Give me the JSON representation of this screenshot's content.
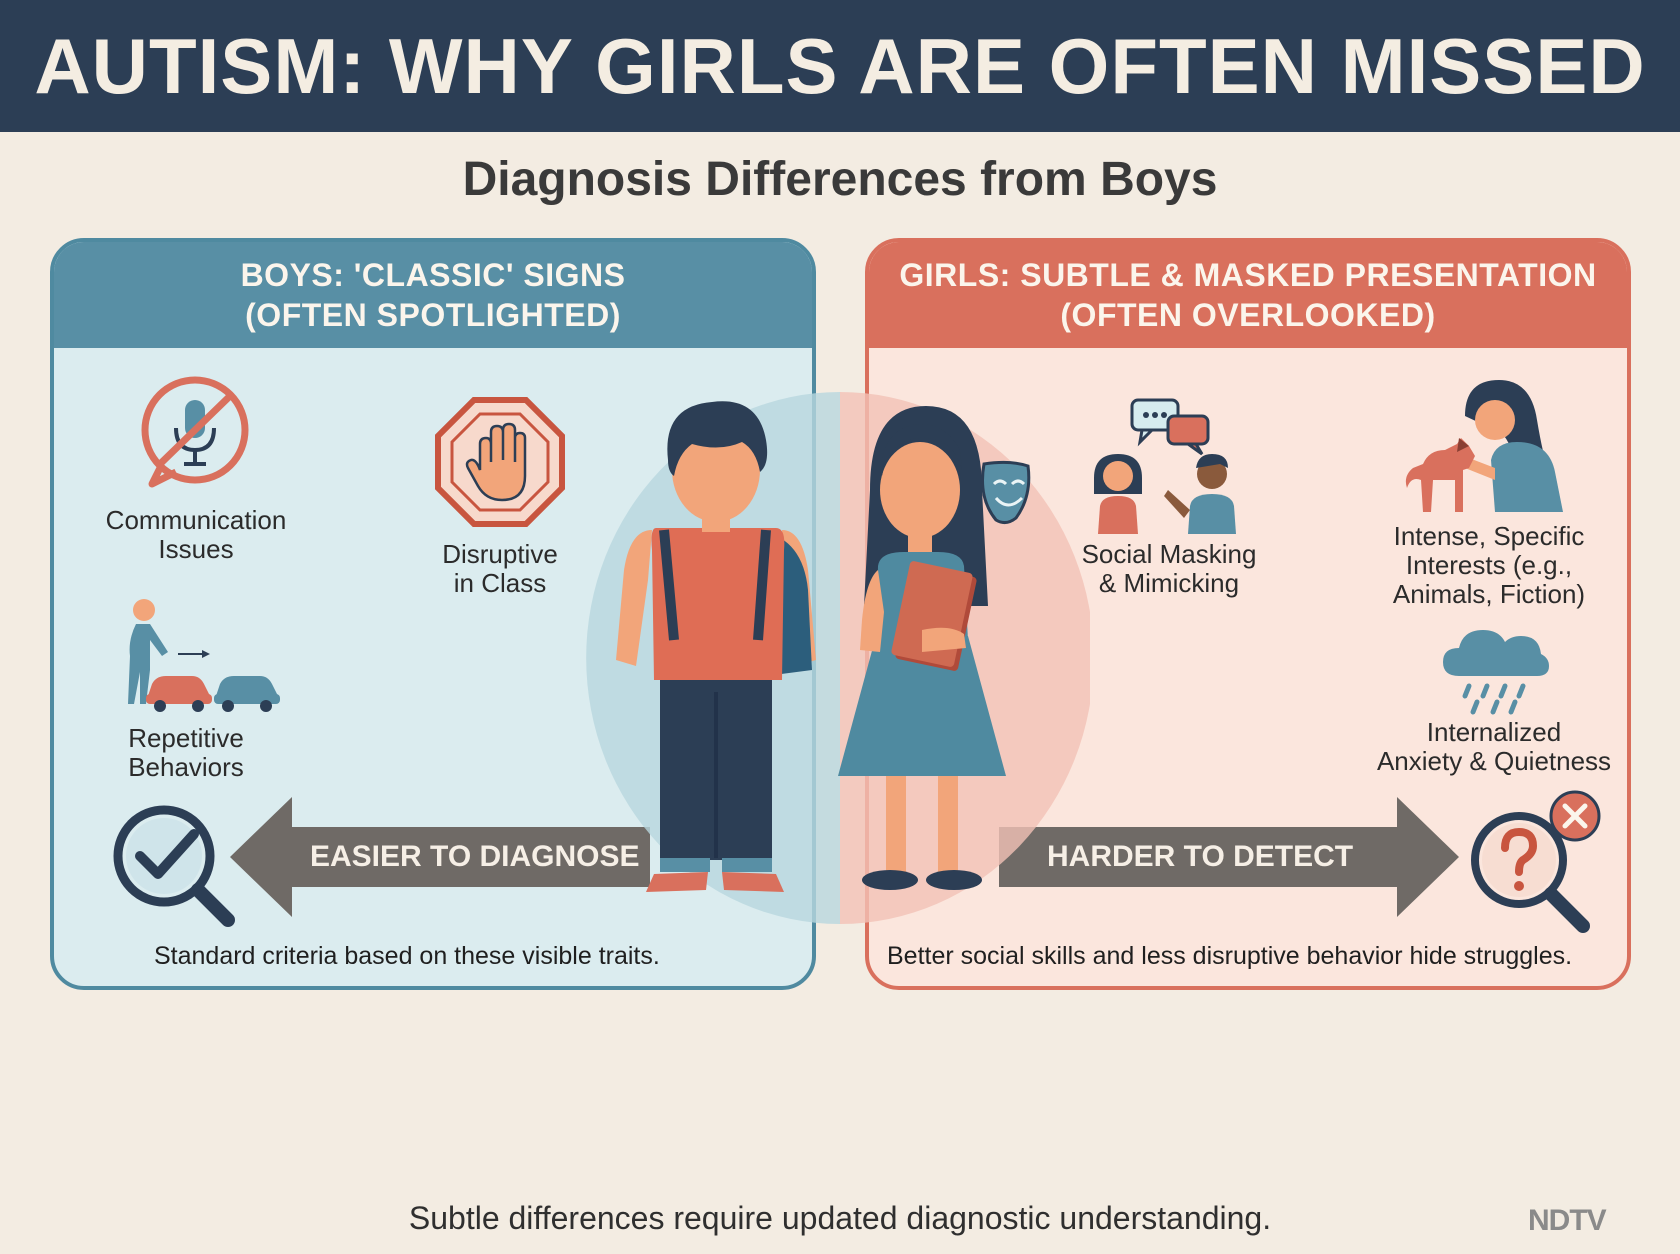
{
  "header": {
    "title": "AUTISM: WHY GIRLS ARE OFTEN MISSED"
  },
  "subtitle": "Diagnosis Differences from Boys",
  "boys_panel": {
    "heading_line1": "BOYS: 'CLASSIC' SIGNS",
    "heading_line2": "(OFTEN SPOTLIGHTED)",
    "traits": [
      {
        "line1": "Communication",
        "line2": "Issues",
        "icon": "no-microphone-icon"
      },
      {
        "line1": "Disruptive",
        "line2": "in Class",
        "icon": "stop-hand-icon"
      },
      {
        "line1": "Repetitive",
        "line2": "Behaviors",
        "icon": "lining-up-cars-icon"
      }
    ],
    "arrow_label": "EASIER TO DIAGNOSE",
    "caption": "Standard criteria based on these visible traits.",
    "result_icon": "magnifier-check-icon"
  },
  "girls_panel": {
    "heading_line1": "GIRLS: SUBTLE & MASKED PRESENTATION",
    "heading_line2": "(OFTEN OVERLOOKED)",
    "traits": [
      {
        "line1": "Social Masking",
        "line2": "& Mimicking",
        "icon": "conversation-icon"
      },
      {
        "line1": "Intense, Specific",
        "line2": "Interests (e.g.,",
        "line3": "Animals, Fiction)",
        "icon": "girl-with-horse-icon"
      },
      {
        "line1": "Internalized",
        "line2": "Anxiety & Quietness",
        "icon": "rain-cloud-icon"
      }
    ],
    "arrow_label": "HARDER TO DETECT",
    "caption": "Better social skills and less disruptive behavior hide struggles.",
    "result_icon": "magnifier-question-icon"
  },
  "footer": {
    "text": "Subtle differences require updated diagnostic understanding.",
    "logo": "NDTV"
  },
  "colors": {
    "navy": "#2c3e55",
    "teal": "#588fa5",
    "coral": "#d9705d",
    "boys_bg": "#dbecef",
    "girls_bg": "#fbe6dd",
    "page_bg": "#f3ece2",
    "arrow_gray": "#6f6a66"
  }
}
